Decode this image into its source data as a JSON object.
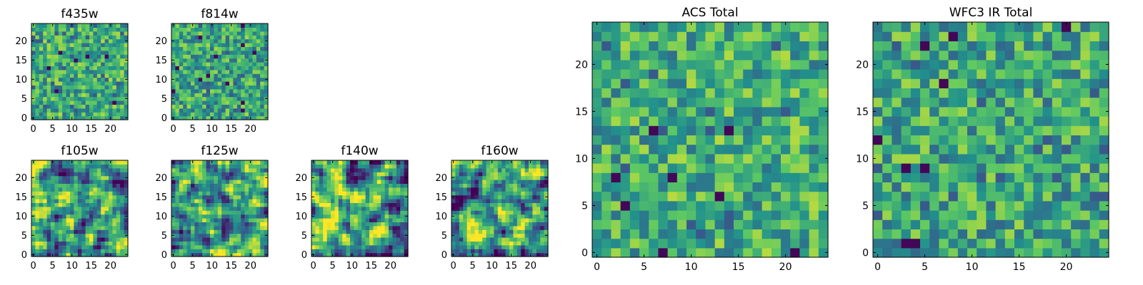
{
  "figure": {
    "colormap": [
      "#440154",
      "#3b528b",
      "#21918c",
      "#5ec962",
      "#fde725"
    ]
  },
  "chart_data": [
    {
      "type": "heatmap",
      "title": "f435w",
      "grid": "25x25",
      "xlim": [
        -0.5,
        24.5
      ],
      "ylim": [
        -0.5,
        24.5
      ],
      "xticks": [
        0,
        5,
        10,
        15,
        20
      ],
      "yticks": [
        0,
        5,
        10,
        15,
        20
      ],
      "xtick_labels": [
        "0",
        "5",
        "10",
        "15",
        "20"
      ],
      "ytick_labels": [
        "0",
        "5",
        "10",
        "15",
        "20"
      ],
      "value_range": [
        0,
        1
      ],
      "seed": 11,
      "smoothness": 0,
      "bias": 0.62
    },
    {
      "type": "heatmap",
      "title": "f814w",
      "grid": "25x25",
      "xlim": [
        -0.5,
        24.5
      ],
      "ylim": [
        -0.5,
        24.5
      ],
      "xticks": [
        0,
        5,
        10,
        15,
        20
      ],
      "yticks": [
        0,
        5,
        10,
        15,
        20
      ],
      "xtick_labels": [
        "0",
        "5",
        "10",
        "15",
        "20"
      ],
      "ytick_labels": [
        "0",
        "5",
        "10",
        "15",
        "20"
      ],
      "value_range": [
        0,
        1
      ],
      "seed": 23,
      "smoothness": 0,
      "bias": 0.6
    },
    {
      "type": "heatmap",
      "title": "f105w",
      "grid": "25x25",
      "xlim": [
        -0.5,
        24.5
      ],
      "ylim": [
        -0.5,
        24.5
      ],
      "xticks": [
        0,
        5,
        10,
        15,
        20
      ],
      "yticks": [
        0,
        5,
        10,
        15,
        20
      ],
      "xtick_labels": [
        "0",
        "5",
        "10",
        "15",
        "20"
      ],
      "ytick_labels": [
        "0",
        "5",
        "10",
        "15",
        "20"
      ],
      "value_range": [
        0,
        1
      ],
      "seed": 37,
      "smoothness": 1,
      "bias": 0.55
    },
    {
      "type": "heatmap",
      "title": "f125w",
      "grid": "25x25",
      "xlim": [
        -0.5,
        24.5
      ],
      "ylim": [
        -0.5,
        24.5
      ],
      "xticks": [
        0,
        5,
        10,
        15,
        20
      ],
      "yticks": [
        0,
        5,
        10,
        15,
        20
      ],
      "xtick_labels": [
        "0",
        "5",
        "10",
        "15",
        "20"
      ],
      "ytick_labels": [
        "0",
        "5",
        "10",
        "15",
        "20"
      ],
      "value_range": [
        0,
        1
      ],
      "seed": 41,
      "smoothness": 1,
      "bias": 0.56
    },
    {
      "type": "heatmap",
      "title": "f140w",
      "grid": "25x25",
      "xlim": [
        -0.5,
        24.5
      ],
      "ylim": [
        -0.5,
        24.5
      ],
      "xticks": [
        0,
        5,
        10,
        15,
        20
      ],
      "yticks": [
        0,
        5,
        10,
        15,
        20
      ],
      "xtick_labels": [
        "0",
        "5",
        "10",
        "15",
        "20"
      ],
      "ytick_labels": [
        "0",
        "5",
        "10",
        "15",
        "20"
      ],
      "value_range": [
        0,
        1
      ],
      "seed": 53,
      "smoothness": 1,
      "bias": 0.6
    },
    {
      "type": "heatmap",
      "title": "f160w",
      "grid": "25x25",
      "xlim": [
        -0.5,
        24.5
      ],
      "ylim": [
        -0.5,
        24.5
      ],
      "xticks": [
        0,
        5,
        10,
        15,
        20
      ],
      "yticks": [
        0,
        5,
        10,
        15,
        20
      ],
      "xtick_labels": [
        "0",
        "5",
        "10",
        "15",
        "20"
      ],
      "ytick_labels": [
        "0",
        "5",
        "10",
        "15",
        "20"
      ],
      "value_range": [
        0,
        1
      ],
      "seed": 67,
      "smoothness": 1,
      "bias": 0.58
    },
    {
      "type": "heatmap",
      "title": "ACS Total",
      "grid": "25x25",
      "xlim": [
        -0.5,
        24.5
      ],
      "ylim": [
        -0.5,
        24.5
      ],
      "xticks": [
        0,
        5,
        10,
        15,
        20
      ],
      "yticks": [
        0,
        5,
        10,
        15,
        20
      ],
      "xtick_labels": [
        "0",
        "5",
        "10",
        "15",
        "20"
      ],
      "ytick_labels": [
        "0",
        "5",
        "10",
        "15",
        "20"
      ],
      "value_range": [
        0,
        1
      ],
      "seed": 79,
      "smoothness": 0,
      "bias": 0.63
    },
    {
      "type": "heatmap",
      "title": "WFC3 IR Total",
      "grid": "25x25",
      "xlim": [
        -0.5,
        24.5
      ],
      "ylim": [
        -0.5,
        24.5
      ],
      "xticks": [
        0,
        5,
        10,
        15,
        20
      ],
      "yticks": [
        0,
        5,
        10,
        15,
        20
      ],
      "xtick_labels": [
        "0",
        "5",
        "10",
        "15",
        "20"
      ],
      "ytick_labels": [
        "0",
        "5",
        "10",
        "15",
        "20"
      ],
      "value_range": [
        0,
        1
      ],
      "seed": 97,
      "smoothness": 0,
      "bias": 0.6
    }
  ]
}
